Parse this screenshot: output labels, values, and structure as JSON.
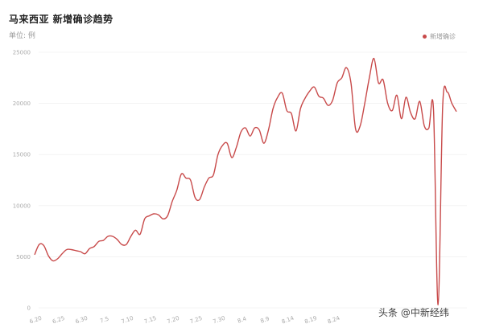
{
  "title": "马来西亚 新增确诊趋势",
  "unit_label": "单位: 例",
  "watermark": "头条 @中新经纬",
  "colors": {
    "series": "#c84a4a",
    "grid": "#ececec",
    "axis": "#e0e0e0"
  },
  "chart_data": {
    "type": "line",
    "title": "马来西亚 新增确诊趋势",
    "ylim": [
      0,
      25000
    ],
    "yticks": [
      "0",
      "5000",
      "10000",
      "15000",
      "20000",
      "25000"
    ],
    "grid": true,
    "legend_position": "top-right",
    "x_labels": [
      "6.20",
      "6.25",
      "6.30",
      "7.5",
      "7.10",
      "7.15",
      "7.20",
      "7.25",
      "7.30",
      "8.4",
      "8.9",
      "8.14",
      "8.19",
      "8.24"
    ],
    "series": [
      {
        "name": "新增确诊",
        "values": [
          5200,
          6200,
          6100,
          5100,
          4600,
          4800,
          5300,
          5700,
          5700,
          5600,
          5500,
          5300,
          5800,
          6000,
          6500,
          6600,
          7000,
          7000,
          6700,
          6200,
          6200,
          7000,
          7600,
          7200,
          8700,
          9000,
          9200,
          9100,
          8700,
          9000,
          10400,
          11500,
          13100,
          12700,
          12500,
          10800,
          10600,
          11800,
          12700,
          13000,
          15000,
          15900,
          16100,
          14700,
          15700,
          17200,
          17600,
          16800,
          17600,
          17400,
          16100,
          17400,
          19500,
          20600,
          21000,
          19300,
          19000,
          17300,
          19500,
          20500,
          21200,
          21600,
          20700,
          20500,
          19800,
          20300,
          22000,
          22500,
          23500,
          22000,
          17500,
          17800,
          20000,
          22500,
          24400,
          22000,
          22300,
          20000,
          19300,
          20800,
          18500,
          20600,
          19100,
          18500,
          20200,
          17800,
          17600,
          19400,
          300,
          19700,
          21100,
          20000,
          19200
        ]
      }
    ]
  }
}
